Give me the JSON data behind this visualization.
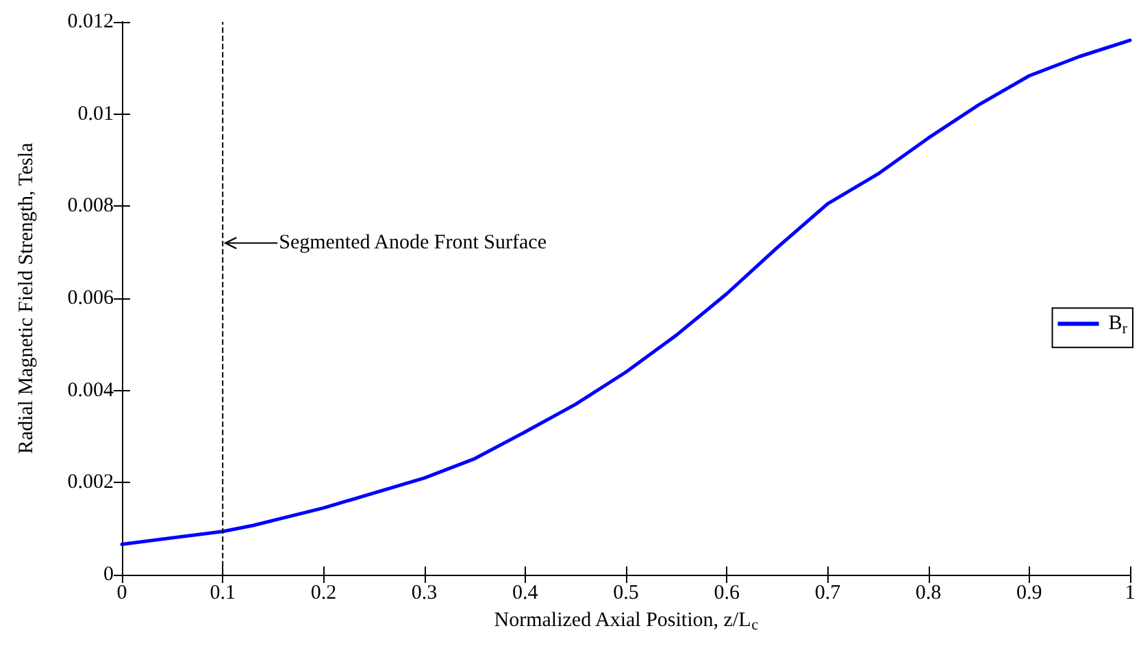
{
  "chart_data": {
    "type": "line",
    "xlabel": "Normalized Axial Position, z/L$_{c}$",
    "ylabel": "Radial Magnetic Field Strength, Tesla",
    "x": [
      0,
      0.1,
      0.13,
      0.2,
      0.3,
      0.35,
      0.4,
      0.45,
      0.5,
      0.55,
      0.6,
      0.65,
      0.7,
      0.75,
      0.8,
      0.85,
      0.9,
      0.95,
      1
    ],
    "series": [
      {
        "name": "B$_{r}$",
        "color": "#0000ff",
        "values": [
          0.00066,
          0.00094,
          0.00107,
          0.00145,
          0.0021,
          0.00252,
          0.0031,
          0.0037,
          0.0044,
          0.0052,
          0.0061,
          0.0071,
          0.00805,
          0.0087,
          0.00948,
          0.0102,
          0.01083,
          0.01125,
          0.0116
        ]
      }
    ],
    "xlim": [
      0,
      1
    ],
    "xticks": [
      0,
      0.1,
      0.2,
      0.3,
      0.4,
      0.5,
      0.6,
      0.7,
      0.8,
      0.9,
      1
    ],
    "ylim": [
      0,
      0.012
    ],
    "yticks": [
      0,
      0.002,
      0.004,
      0.006,
      0.008,
      0.01,
      0.012
    ],
    "ref_lines": [
      {
        "axis": "x",
        "value": 0.1,
        "color": "#000000",
        "line_style": "dashed"
      }
    ],
    "annotations": [
      {
        "text": "Segmented Anode Front Surface",
        "x": 0.1,
        "y": 0.0072
      }
    ],
    "grid": false,
    "legend": "right",
    "marker": "none",
    "line_style": "solid"
  }
}
